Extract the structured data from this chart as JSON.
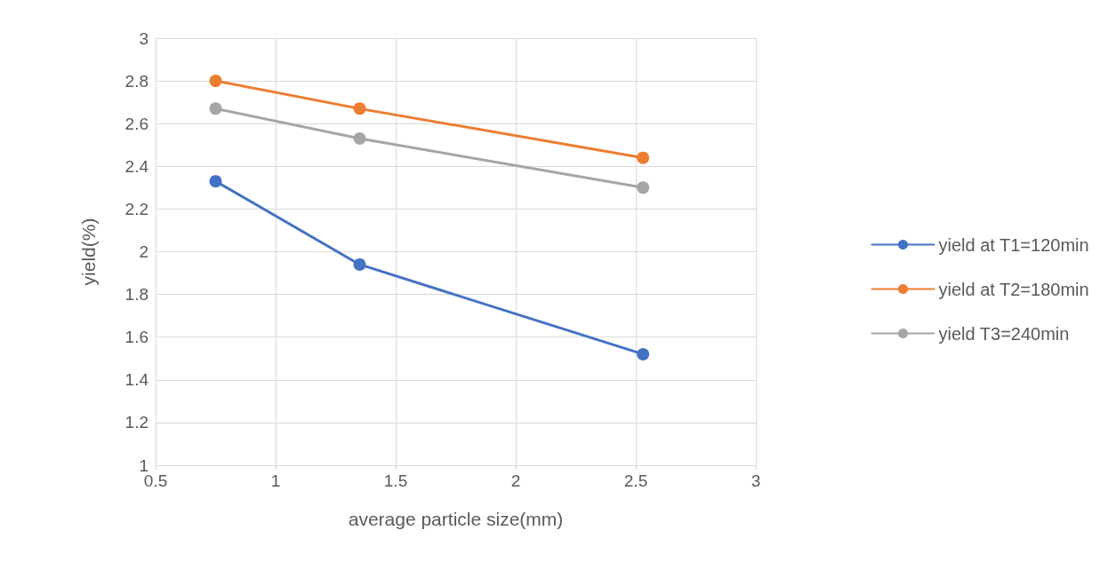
{
  "chart_data": {
    "type": "line",
    "xlabel": "average particle size(mm)",
    "ylabel": "yield(%)",
    "x": [
      0.75,
      1.35,
      2.53
    ],
    "series": [
      {
        "name": "yield at T1=120min",
        "color": "#4472c4",
        "values": [
          2.33,
          1.94,
          1.52
        ]
      },
      {
        "name": "yield at T2=180min",
        "color": "#ed7d31",
        "values": [
          2.8,
          2.67,
          2.44
        ]
      },
      {
        "name": "yield T3=240min",
        "color": "#a5a5a5",
        "values": [
          2.67,
          2.53,
          2.3
        ]
      }
    ],
    "xlim": [
      0.5,
      3
    ],
    "xticks": [
      0.5,
      1,
      1.5,
      2,
      2.5,
      3
    ],
    "ylim": [
      1,
      3
    ],
    "yticks": [
      1,
      1.2,
      1.4,
      1.6,
      1.8,
      2,
      2.2,
      2.4,
      2.6,
      2.8,
      3
    ],
    "grid": true,
    "legend": "right",
    "marker": "circle",
    "line_style": "solid"
  }
}
